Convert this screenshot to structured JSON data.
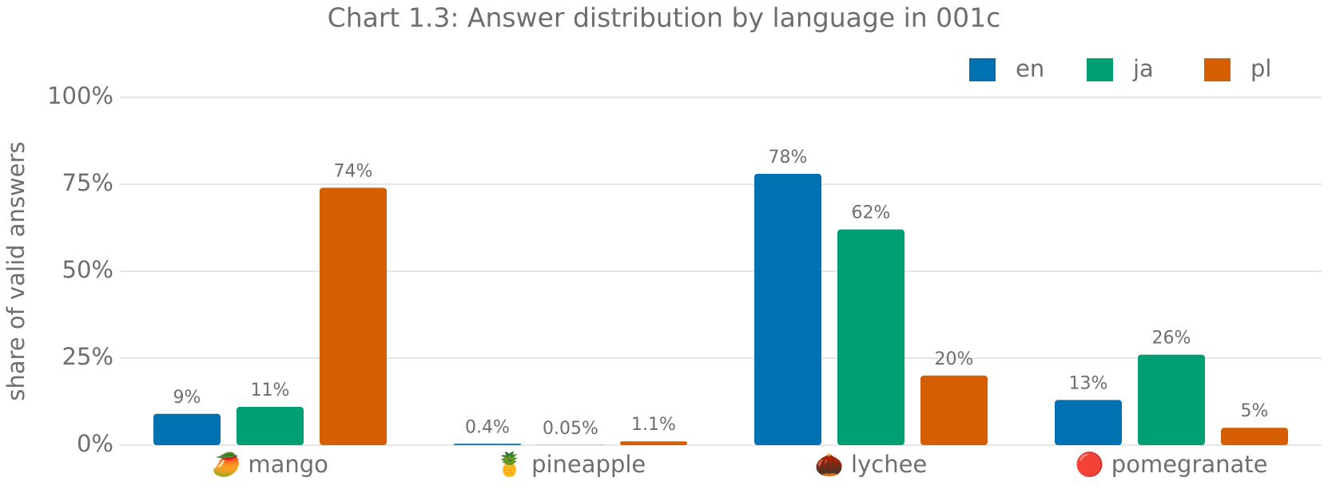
{
  "chart_data": {
    "type": "bar",
    "title": "Chart 1.3: Answer distribution by language in 001c",
    "y_label": "share of valid answers",
    "categories": [
      "🥭 mango",
      "🍍 pineapple",
      "🌰 lychee",
      "🔴 pomegranate"
    ],
    "series": [
      {
        "name": "en",
        "color": "#0072b2",
        "values": [
          9,
          0.4,
          78,
          13
        ],
        "value_labels": [
          "9%",
          "0.4%",
          "78%",
          "13%"
        ]
      },
      {
        "name": "ja",
        "color": "#009e73",
        "values": [
          11,
          0.05,
          62,
          26
        ],
        "value_labels": [
          "11%",
          "0.05%",
          "62%",
          "26%"
        ]
      },
      {
        "name": "pl",
        "color": "#d55e00",
        "values": [
          74,
          1.1,
          20,
          5
        ],
        "value_labels": [
          "74%",
          "1.1%",
          "20%",
          "5%"
        ]
      }
    ],
    "ylim": [
      0,
      100
    ],
    "yticks": [
      {
        "value": 0,
        "label": "0%"
      },
      {
        "value": 25,
        "label": "25%"
      },
      {
        "value": 50,
        "label": "50%"
      },
      {
        "value": 75,
        "label": "75%"
      },
      {
        "value": 100,
        "label": "100%"
      }
    ],
    "grid": true,
    "legend": "top-right"
  }
}
